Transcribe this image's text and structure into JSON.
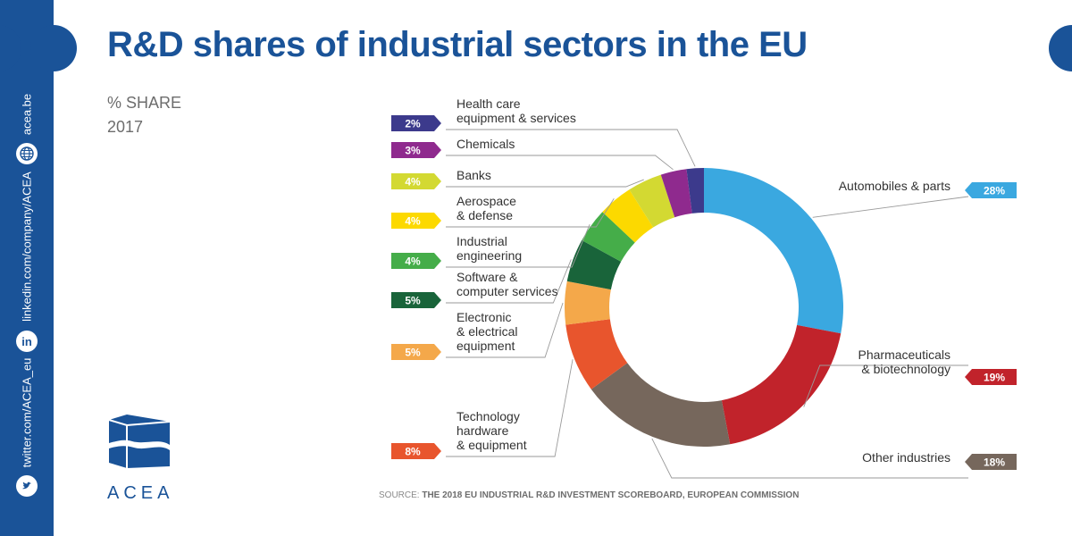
{
  "header": {
    "title": "R&D shares of industrial sectors in the EU"
  },
  "subtitle": {
    "metric": "% SHARE",
    "year": "2017"
  },
  "sidebar": {
    "links": [
      {
        "label": "acea.be",
        "icon": "globe-icon"
      },
      {
        "label": "linkedin.com/company/ACEA",
        "icon": "linkedin-icon",
        "icon_text": "in"
      },
      {
        "label": "twitter.com/ACEA_eu",
        "icon": "twitter-icon"
      }
    ]
  },
  "logo": {
    "text": "ACEA"
  },
  "source": {
    "prefix": "SOURCE:",
    "text": "THE 2018 EU INDUSTRIAL R&D INVESTMENT SCOREBOARD, EUROPEAN COMMISSION"
  },
  "colors": {
    "brand": "#1a5398"
  },
  "chart_data": {
    "type": "pie",
    "donut": true,
    "title": "R&D shares of industrial sectors in the EU",
    "unit": "%",
    "year": "2017",
    "slices": [
      {
        "label": "Automobiles & parts",
        "value": 28,
        "value_label": "28%",
        "color": "#3aa8e0",
        "side": "right"
      },
      {
        "label": "Pharmaceuticals & biotechnology",
        "value": 19,
        "value_label": "19%",
        "color": "#c1232b",
        "side": "right"
      },
      {
        "label": "Other industries",
        "value": 18,
        "value_label": "18%",
        "color": "#76675c",
        "side": "right"
      },
      {
        "label": "Technology hardware & equipment",
        "value": 8,
        "value_label": "8%",
        "color": "#e8552d",
        "side": "left"
      },
      {
        "label": "Electronic & electrical equipment",
        "value": 5,
        "value_label": "5%",
        "color": "#f4a84a",
        "side": "left"
      },
      {
        "label": "Software & computer services",
        "value": 5,
        "value_label": "5%",
        "color": "#19643a",
        "side": "left"
      },
      {
        "label": "Industrial engineering",
        "value": 4,
        "value_label": "4%",
        "color": "#45ad49",
        "side": "left"
      },
      {
        "label": "Aerospace & defense",
        "value": 4,
        "value_label": "4%",
        "color": "#fcd900",
        "side": "left"
      },
      {
        "label": "Banks",
        "value": 4,
        "value_label": "4%",
        "color": "#d3d932",
        "side": "left"
      },
      {
        "label": "Chemicals",
        "value": 3,
        "value_label": "3%",
        "color": "#8f2a8e",
        "side": "left"
      },
      {
        "label": "Health care equipment & services",
        "value": 2,
        "value_label": "2%",
        "color": "#3c3a8c",
        "side": "left"
      }
    ]
  }
}
